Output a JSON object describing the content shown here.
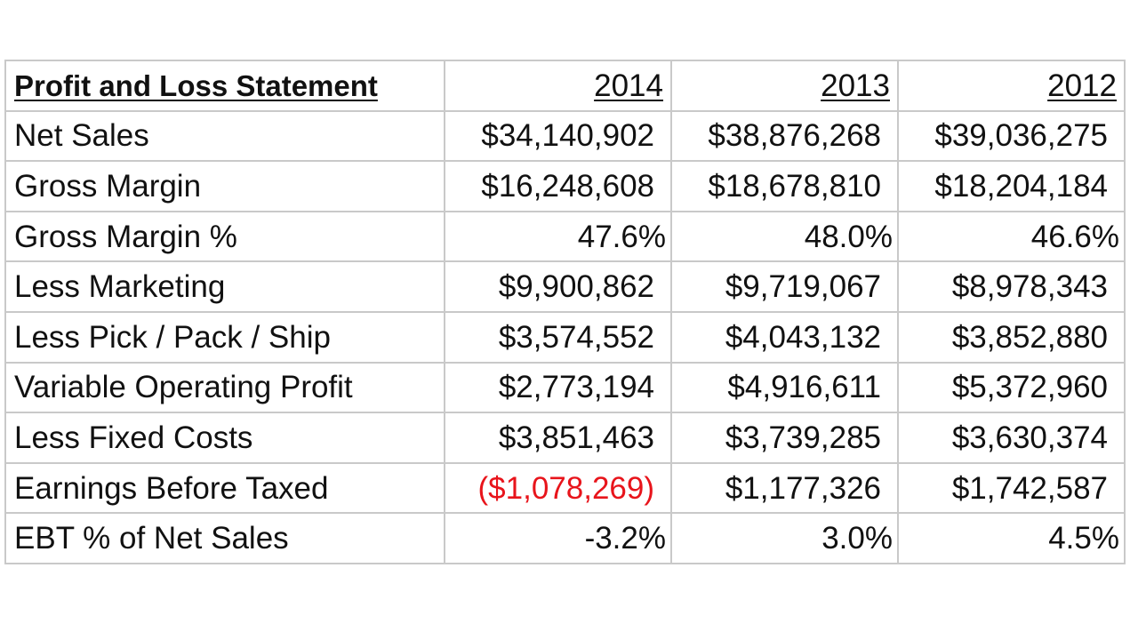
{
  "table": {
    "title": "Profit and Loss Statement",
    "years": [
      "2014",
      "2013",
      "2012"
    ],
    "rows": [
      {
        "label": "Net Sales",
        "values": [
          "$34,140,902",
          "$38,876,268",
          "$39,036,275"
        ]
      },
      {
        "label": "Gross Margin",
        "values": [
          "$16,248,608",
          "$18,678,810",
          "$18,204,184"
        ]
      },
      {
        "label": "Gross Margin %",
        "values": [
          "47.6%",
          "48.0%",
          "46.6%"
        ]
      },
      {
        "label": "Less Marketing",
        "values": [
          "$9,900,862",
          "$9,719,067",
          "$8,978,343"
        ]
      },
      {
        "label": "Less Pick / Pack / Ship",
        "values": [
          "$3,574,552",
          "$4,043,132",
          "$3,852,880"
        ]
      },
      {
        "label": "Variable Operating Profit",
        "values": [
          "$2,773,194",
          "$4,916,611",
          "$5,372,960"
        ]
      },
      {
        "label": "Less Fixed Costs",
        "values": [
          "$3,851,463",
          "$3,739,285",
          "$3,630,374"
        ]
      },
      {
        "label": "Earnings Before Taxed",
        "values": [
          "($1,078,269)",
          "$1,177,326",
          "$1,742,587"
        ]
      },
      {
        "label": "EBT % of Net Sales",
        "values": [
          "-3.2%",
          "3.0%",
          "4.5%"
        ]
      }
    ],
    "negative_color": "#e8141b",
    "border_color": "#c9c9c9"
  }
}
